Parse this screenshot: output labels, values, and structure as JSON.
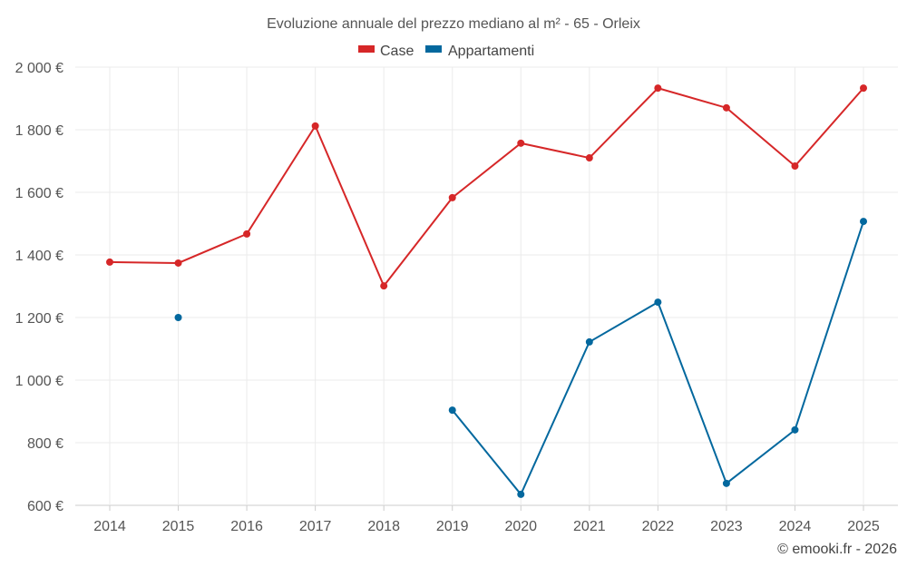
{
  "chart_data": {
    "type": "line",
    "title": "Evoluzione annuale del prezzo mediano al m² - 65 - Orleix",
    "x": [
      "2014",
      "2015",
      "2016",
      "2017",
      "2018",
      "2019",
      "2020",
      "2021",
      "2022",
      "2023",
      "2024",
      "2025"
    ],
    "yticks": [
      "600 €",
      "800 €",
      "1 000 €",
      "1 200 €",
      "1 400 €",
      "1 600 €",
      "1 800 €",
      "2 000 €"
    ],
    "ytick_values": [
      600,
      800,
      1000,
      1200,
      1400,
      1600,
      1800,
      2000
    ],
    "ylim": [
      600,
      2000
    ],
    "grid": true,
    "legend_position": "top-center",
    "series": [
      {
        "name": "Case",
        "color": "#d62728",
        "values": [
          1377,
          1374,
          1467,
          1812,
          1301,
          1583,
          1757,
          1710,
          1933,
          1870,
          1684,
          1933
        ]
      },
      {
        "name": "Appartamenti",
        "color": "#03689e",
        "values": [
          null,
          1200,
          null,
          null,
          null,
          904,
          635,
          1122,
          1249,
          670,
          841,
          1507
        ]
      }
    ],
    "credit": "© emooki.fr - 2026"
  }
}
